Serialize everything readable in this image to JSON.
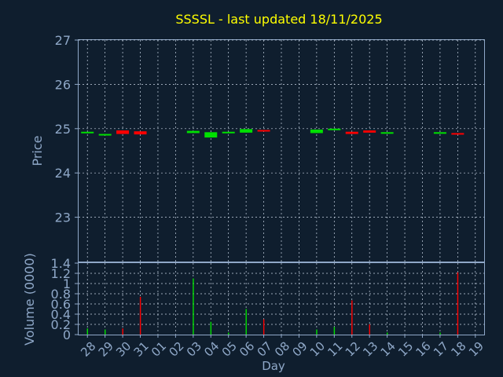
{
  "chart_data": {
    "type": "candlestick",
    "title": "SSSSL - last updated 18/11/2025",
    "x_categories": [
      "28",
      "29",
      "30",
      "31",
      "01",
      "02",
      "03",
      "04",
      "05",
      "06",
      "07",
      "08",
      "09",
      "10",
      "11",
      "12",
      "13",
      "14",
      "15",
      "16",
      "17",
      "18",
      "19"
    ],
    "xlabel": "Day",
    "grid": true,
    "price_panel": {
      "ylabel": "Price",
      "ylim": [
        22.0,
        27.0
      ],
      "yticks": [
        "27",
        "26",
        "25",
        "24",
        "23"
      ],
      "candles": [
        {
          "x": "28",
          "open": 24.91,
          "close": 24.93,
          "color": "#00e000"
        },
        {
          "x": "29",
          "open": 24.86,
          "close": 24.88,
          "color": "#00e000"
        },
        {
          "x": "30",
          "open": 24.96,
          "close": 24.88,
          "color": "#ff0000"
        },
        {
          "x": "31",
          "open": 24.94,
          "close": 24.87,
          "color": "#ff0000"
        },
        {
          "x": "03",
          "open": 24.9,
          "close": 24.95,
          "color": "#00e000"
        },
        {
          "x": "04",
          "open": 24.8,
          "close": 24.92,
          "color": "#00e000"
        },
        {
          "x": "05",
          "open": 24.91,
          "close": 24.93,
          "color": "#00e000"
        },
        {
          "x": "06",
          "open": 24.91,
          "close": 24.99,
          "color": "#00e000"
        },
        {
          "x": "07",
          "open": 24.97,
          "close": 24.94,
          "color": "#ff0000"
        },
        {
          "x": "10",
          "open": 24.9,
          "close": 24.98,
          "color": "#00e000"
        },
        {
          "x": "11",
          "open": 24.98,
          "close": 25.0,
          "color": "#00e000"
        },
        {
          "x": "12",
          "open": 24.93,
          "close": 24.88,
          "color": "#ff0000"
        },
        {
          "x": "13",
          "open": 24.96,
          "close": 24.91,
          "color": "#ff0000"
        },
        {
          "x": "14",
          "open": 24.9,
          "close": 24.92,
          "color": "#00e000"
        },
        {
          "x": "17",
          "open": 24.9,
          "close": 24.92,
          "color": "#00e000"
        },
        {
          "x": "18",
          "open": 24.9,
          "close": 24.88,
          "color": "#ff0000"
        }
      ]
    },
    "volume_panel": {
      "ylabel": "Volume (0000)",
      "ylim": [
        0,
        1.4
      ],
      "yticks": [
        "1.4",
        "1.2",
        "1",
        "0.8",
        "0.6",
        "0.4",
        "0.2",
        "0"
      ],
      "bars": [
        {
          "x": "28",
          "value": 0.12,
          "color": "#00e000"
        },
        {
          "x": "29",
          "value": 0.1,
          "color": "#00e000"
        },
        {
          "x": "30",
          "value": 0.12,
          "color": "#ff0000"
        },
        {
          "x": "31",
          "value": 0.74,
          "color": "#ff0000"
        },
        {
          "x": "03",
          "value": 1.1,
          "color": "#00e000"
        },
        {
          "x": "04",
          "value": 0.25,
          "color": "#00e000"
        },
        {
          "x": "05",
          "value": 0.04,
          "color": "#00e000"
        },
        {
          "x": "06",
          "value": 0.5,
          "color": "#00e000"
        },
        {
          "x": "07",
          "value": 0.3,
          "color": "#ff0000"
        },
        {
          "x": "10",
          "value": 0.1,
          "color": "#00e000"
        },
        {
          "x": "11",
          "value": 0.15,
          "color": "#00e000"
        },
        {
          "x": "12",
          "value": 0.67,
          "color": "#ff0000"
        },
        {
          "x": "13",
          "value": 0.2,
          "color": "#ff0000"
        },
        {
          "x": "14",
          "value": 0.04,
          "color": "#00e000"
        },
        {
          "x": "17",
          "value": 0.04,
          "color": "#00e000"
        },
        {
          "x": "18",
          "value": 1.22,
          "color": "#ff0000"
        }
      ]
    }
  },
  "colors": {
    "background": "#0f1e2e",
    "axis": "#8fa8c8",
    "grid": "#c8d4e4",
    "title": "#ffff00",
    "up": "#00e000",
    "down": "#ff0000"
  }
}
